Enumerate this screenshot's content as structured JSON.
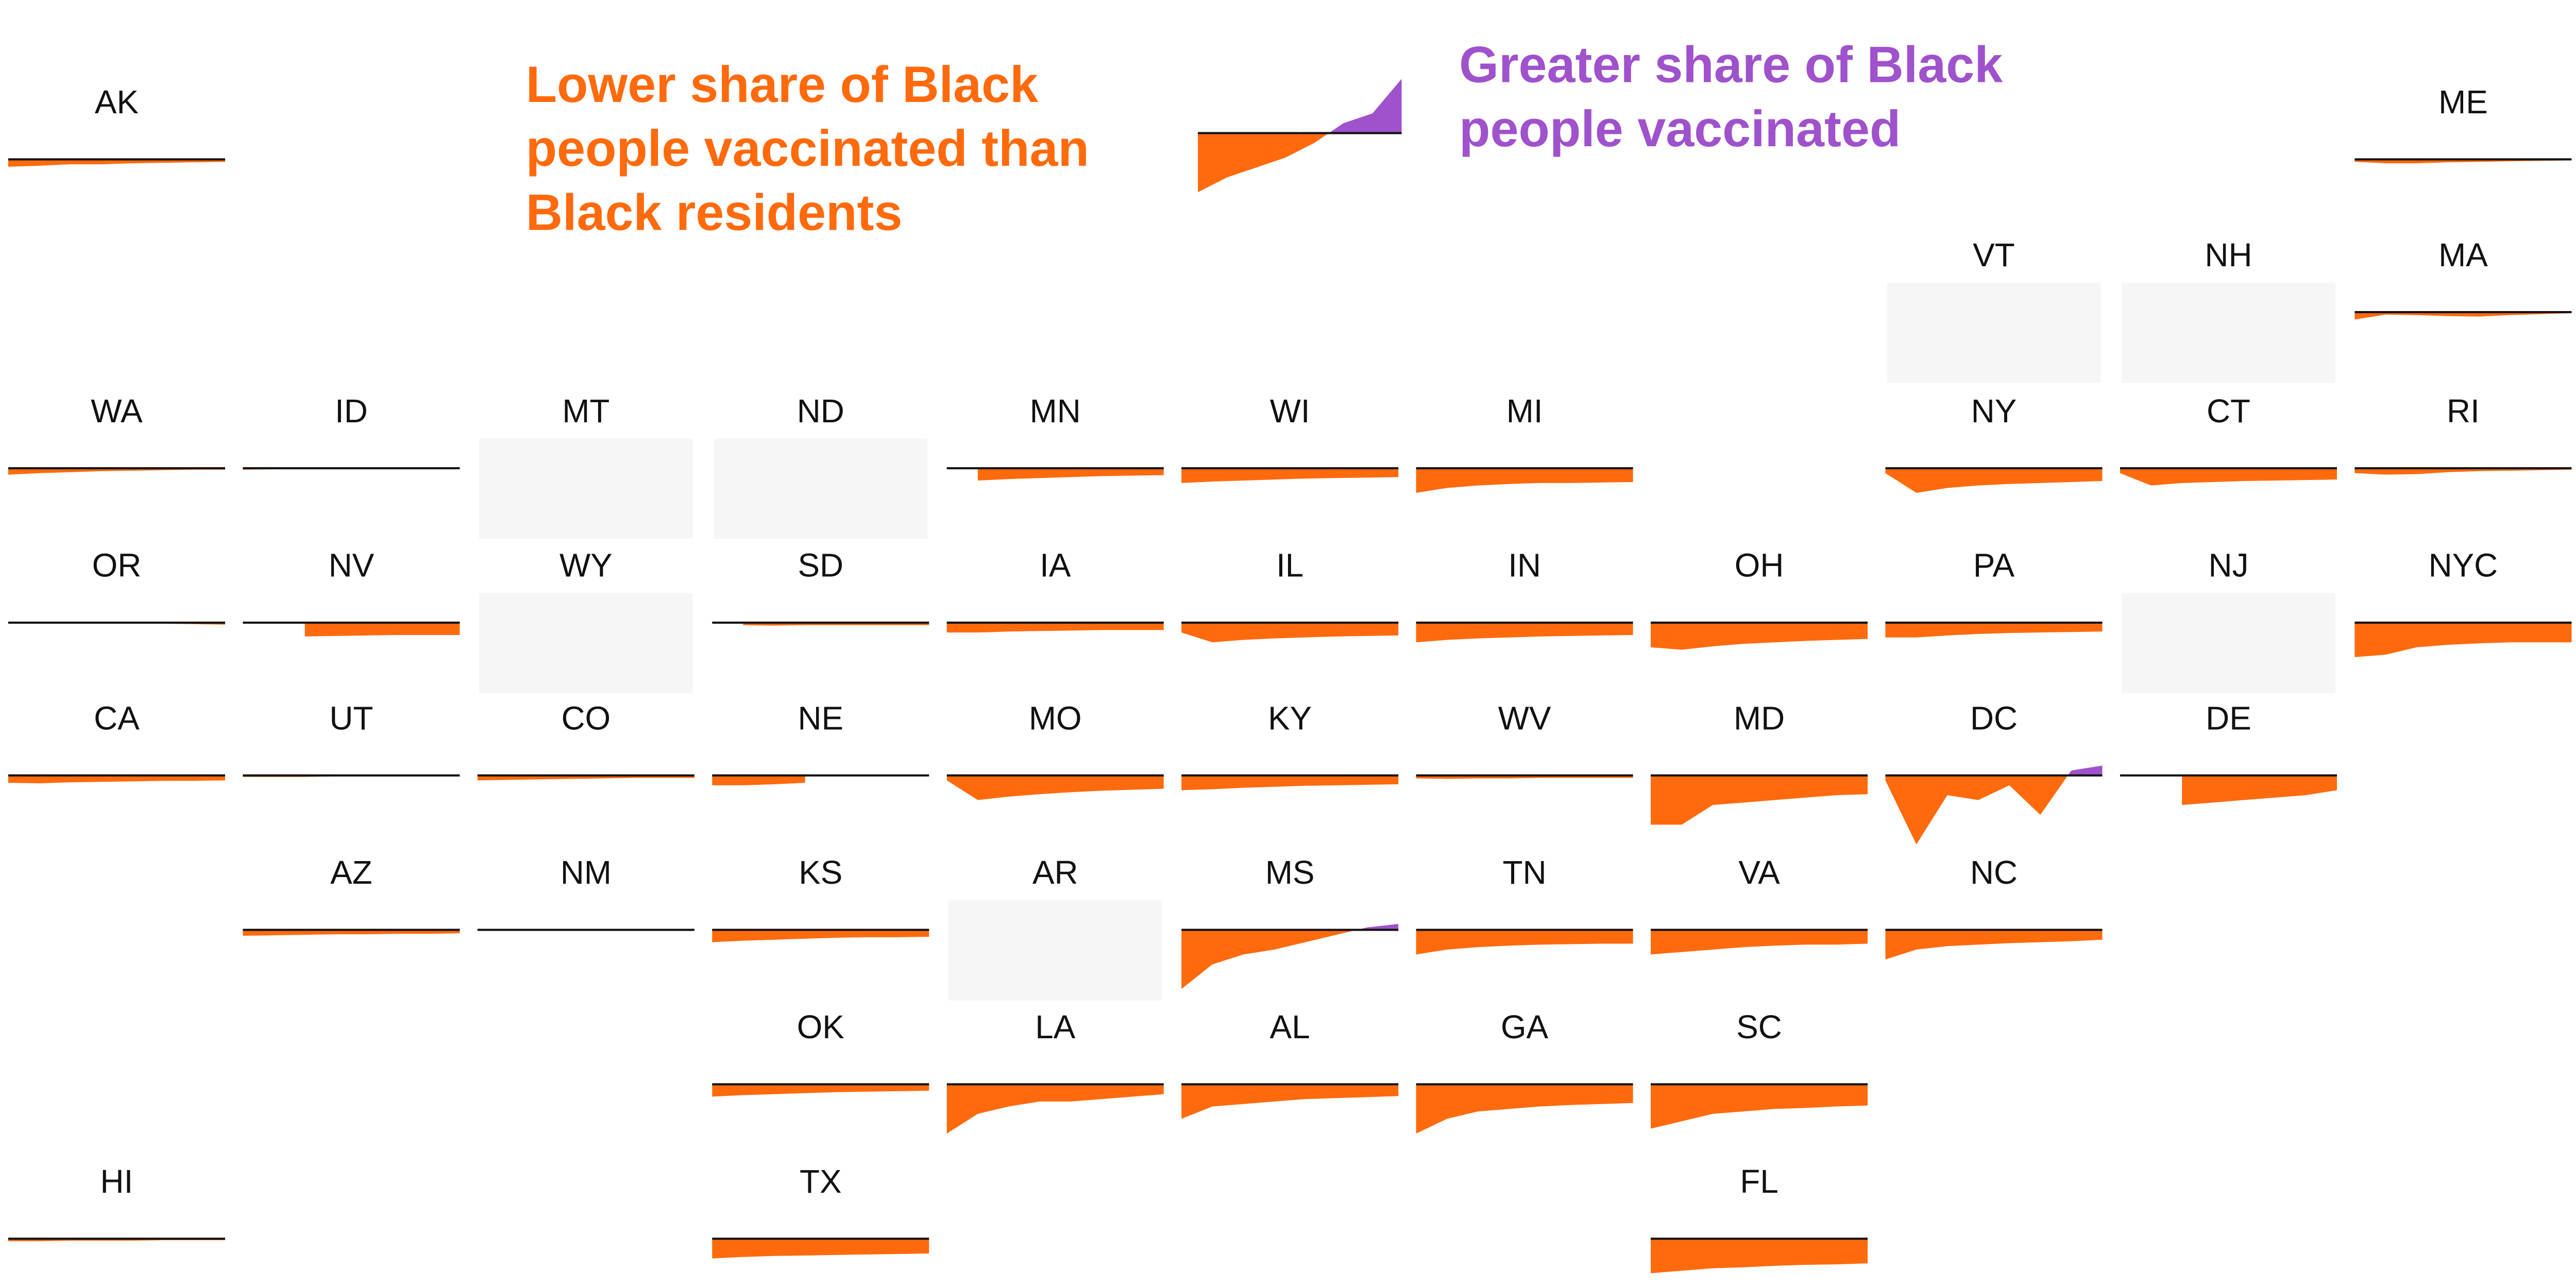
{
  "chart_data": {
    "type": "area",
    "ylim": [
      -15,
      15
    ],
    "colors": {
      "below": "#ff6a0d",
      "above": "#9f52cc"
    },
    "legend": {
      "below_text": [
        "Lower share of Black",
        "people vaccinated than",
        "Black residents"
      ],
      "above_text": [
        "Greater share of Black",
        "people vaccinated"
      ],
      "example_values": [
        -12,
        -9,
        -7,
        -5,
        -2,
        2,
        4,
        11
      ]
    },
    "series": [
      {
        "name": "AK",
        "values": [
          -1.5,
          -1.3,
          -1,
          -1,
          -0.8,
          -0.7,
          -0.6,
          -0.5
        ]
      },
      {
        "name": "ME",
        "values": [
          -0.5,
          -0.8,
          -0.8,
          -0.6,
          -0.5,
          -0.4,
          -0.3,
          -0.2
        ]
      },
      {
        "name": "VT"
      },
      {
        "name": "NH"
      },
      {
        "name": "MA",
        "values": [
          -1.5,
          -0.5,
          -0.6,
          -0.8,
          -0.9,
          -0.6,
          -0.4,
          -0.2
        ]
      },
      {
        "name": "WA",
        "values": [
          -1.3,
          -1,
          -0.8,
          -0.6,
          -0.5,
          -0.4,
          -0.3,
          -0.3
        ]
      },
      {
        "name": "ID",
        "values": [
          -0.3,
          -0.2,
          -0.2,
          -0.2,
          -0.1,
          -0.1,
          -0.1,
          -0.1
        ]
      },
      {
        "name": "MT"
      },
      {
        "name": "ND"
      },
      {
        "name": "MN",
        "values": [
          null,
          -2.5,
          -2.2,
          -2,
          -1.8,
          -1.6,
          -1.5,
          -1.4
        ]
      },
      {
        "name": "WI",
        "values": [
          -3,
          -2.7,
          -2.5,
          -2.3,
          -2.1,
          -2,
          -1.9,
          -1.8
        ]
      },
      {
        "name": "MI",
        "values": [
          -5,
          -4,
          -3.5,
          -3.2,
          -3,
          -3,
          -2.9,
          -2.8
        ]
      },
      {
        "name": "NY",
        "values": [
          -1,
          -5,
          -4,
          -3.5,
          -3.2,
          -3,
          -2.8,
          -2.6
        ]
      },
      {
        "name": "CT",
        "values": [
          -1,
          -3.5,
          -3,
          -2.8,
          -2.6,
          -2.5,
          -2.4,
          -2.3
        ]
      },
      {
        "name": "RI",
        "values": [
          -1,
          -1.3,
          -1.2,
          -0.8,
          -0.6,
          -0.5,
          -0.4,
          -0.3
        ]
      },
      {
        "name": "OR",
        "values": [
          -0.2,
          -0.2,
          -0.2,
          -0.2,
          -0.2,
          -0.2,
          -0.3,
          -0.4
        ]
      },
      {
        "name": "NV",
        "values": [
          null,
          null,
          -2.8,
          -2.7,
          -2.6,
          -2.5,
          -2.5,
          -2.5
        ]
      },
      {
        "name": "WY"
      },
      {
        "name": "SD",
        "values": [
          null,
          -0.5,
          -0.6,
          -0.5,
          -0.5,
          -0.5,
          -0.5,
          -0.5
        ]
      },
      {
        "name": "IA",
        "values": [
          -2,
          -2,
          -1.8,
          -1.7,
          -1.6,
          -1.5,
          -1.5,
          -1.5
        ]
      },
      {
        "name": "IL",
        "values": [
          -2,
          -4,
          -3.5,
          -3.2,
          -3,
          -2.8,
          -2.7,
          -2.6
        ]
      },
      {
        "name": "IN",
        "values": [
          -4,
          -3.5,
          -3.2,
          -3,
          -2.8,
          -2.7,
          -2.6,
          -2.5
        ]
      },
      {
        "name": "OH",
        "values": [
          -5,
          -5.5,
          -4.8,
          -4.3,
          -4,
          -3.7,
          -3.5,
          -3.3
        ]
      },
      {
        "name": "PA",
        "values": [
          -3,
          -3,
          -2.6,
          -2.3,
          -2.1,
          -2,
          -1.9,
          -1.8
        ]
      },
      {
        "name": "NJ"
      },
      {
        "name": "NYC",
        "values": [
          -7,
          -6.5,
          -5,
          -4.5,
          -4.2,
          -4,
          -4,
          -4
        ]
      },
      {
        "name": "CA",
        "values": [
          -1.5,
          -1.6,
          -1.4,
          -1.3,
          -1.2,
          -1.1,
          -1.1,
          -1
        ]
      },
      {
        "name": "UT",
        "values": [
          -0.3,
          -0.3,
          -0.3,
          -0.2,
          -0.2,
          -0.2,
          -0.2,
          -0.2
        ]
      },
      {
        "name": "CO",
        "values": [
          -1,
          -0.9,
          -0.8,
          -0.7,
          -0.6,
          -0.5,
          -0.5,
          -0.5
        ]
      },
      {
        "name": "NE",
        "values": [
          -2,
          -2,
          -1.8,
          -1.5,
          null,
          null,
          null,
          null
        ]
      },
      {
        "name": "MO",
        "values": [
          -1,
          -5,
          -4.3,
          -3.8,
          -3.4,
          -3.1,
          -2.9,
          -2.7
        ]
      },
      {
        "name": "KY",
        "values": [
          -3,
          -2.8,
          -2.5,
          -2.3,
          -2.1,
          -2,
          -1.9,
          -1.8
        ]
      },
      {
        "name": "WV",
        "values": [
          -0.6,
          -0.7,
          -0.6,
          -0.6,
          -0.5,
          -0.5,
          -0.5,
          -0.5
        ]
      },
      {
        "name": "MD",
        "values": [
          -10,
          -10,
          -6,
          -5.5,
          -5,
          -4.5,
          -4,
          -3.8
        ]
      },
      {
        "name": "DC",
        "values": [
          -1,
          -14,
          -4,
          -5,
          -2,
          -8,
          1,
          2
        ]
      },
      {
        "name": "DE",
        "values": [
          null,
          null,
          -6,
          -5.5,
          -5,
          -4.5,
          -4,
          -3
        ]
      },
      {
        "name": "AZ",
        "values": [
          -1.2,
          -1.1,
          -1,
          -0.9,
          -0.9,
          -0.8,
          -0.8,
          -0.7
        ]
      },
      {
        "name": "NM",
        "values": [
          -0.2,
          -0.2,
          -0.2,
          -0.2,
          -0.1,
          -0.1,
          -0.1,
          -0.1
        ]
      },
      {
        "name": "KS",
        "values": [
          -2.5,
          -2.2,
          -2,
          -1.8,
          -1.6,
          -1.5,
          -1.5,
          -1.4
        ]
      },
      {
        "name": "AR"
      },
      {
        "name": "MS",
        "values": [
          -12,
          -7,
          -5,
          -4,
          -2.5,
          -1,
          0.5,
          1.2
        ]
      },
      {
        "name": "TN",
        "values": [
          -5,
          -4,
          -3.5,
          -3.2,
          -3,
          -2.9,
          -2.8,
          -2.8
        ]
      },
      {
        "name": "VA",
        "values": [
          -5,
          -4.5,
          -4,
          -3.5,
          -3.2,
          -3,
          -3,
          -2.8
        ]
      },
      {
        "name": "NC",
        "values": [
          -6,
          -4,
          -3.3,
          -3,
          -2.7,
          -2.5,
          -2.3,
          -2
        ]
      },
      {
        "name": "OK",
        "values": [
          -2.5,
          -2.2,
          -2,
          -1.8,
          -1.6,
          -1.5,
          -1.4,
          -1.3
        ]
      },
      {
        "name": "LA",
        "values": [
          -10,
          -6,
          -4.5,
          -3.5,
          -3.5,
          -3,
          -2.5,
          -2
        ]
      },
      {
        "name": "AL",
        "values": [
          -7,
          -4.5,
          -4,
          -3.5,
          -3,
          -2.8,
          -2.6,
          -2.4
        ]
      },
      {
        "name": "GA",
        "values": [
          -10,
          -7,
          -5.5,
          -5,
          -4.5,
          -4.2,
          -4,
          -3.8
        ]
      },
      {
        "name": "SC",
        "values": [
          -9,
          -7.5,
          -6,
          -5.5,
          -5,
          -4.8,
          -4.5,
          -4.3
        ]
      },
      {
        "name": "HI",
        "values": [
          -0.5,
          -0.5,
          -0.4,
          -0.4,
          -0.4,
          -0.3,
          -0.3,
          -0.3
        ]
      },
      {
        "name": "TX",
        "values": [
          -4,
          -3.7,
          -3.5,
          -3.4,
          -3.3,
          -3.2,
          -3.1,
          -3
        ]
      },
      {
        "name": "FL",
        "values": [
          -7,
          -6.5,
          -6,
          -5.8,
          -5.5,
          -5.3,
          -5.2,
          -5
        ]
      }
    ]
  }
}
